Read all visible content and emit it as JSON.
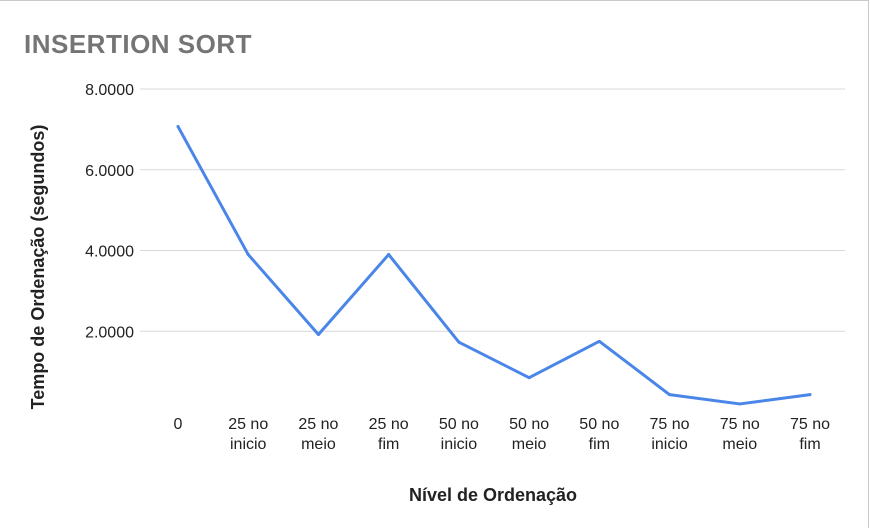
{
  "chart_data": {
    "type": "line",
    "title": "INSERTION SORT",
    "xlabel": "Nível de Ordenação",
    "ylabel": "Tempo de Ordenação (segundos)",
    "categories": [
      [
        "0"
      ],
      [
        "25 no",
        "inicio"
      ],
      [
        "25 no",
        "meio"
      ],
      [
        "25 no",
        "fim"
      ],
      [
        "50 no",
        "inicio"
      ],
      [
        "50 no",
        "meio"
      ],
      [
        "50 no",
        "fim"
      ],
      [
        "75 no",
        "inicio"
      ],
      [
        "75 no",
        "meio"
      ],
      [
        "75 no",
        "fim"
      ]
    ],
    "series": [
      {
        "values": [
          7.07,
          3.9,
          1.92,
          3.9,
          1.73,
          0.85,
          1.75,
          0.43,
          0.2,
          0.43
        ],
        "color": "#4a86e8"
      }
    ],
    "ylim": [
      0,
      8
    ],
    "yticks": [
      2,
      4,
      6,
      8
    ],
    "ytick_labels": [
      "2.0000",
      "4.0000",
      "6.0000",
      "8.0000"
    ],
    "grid": true,
    "gridColor": "#d9d9d9"
  }
}
